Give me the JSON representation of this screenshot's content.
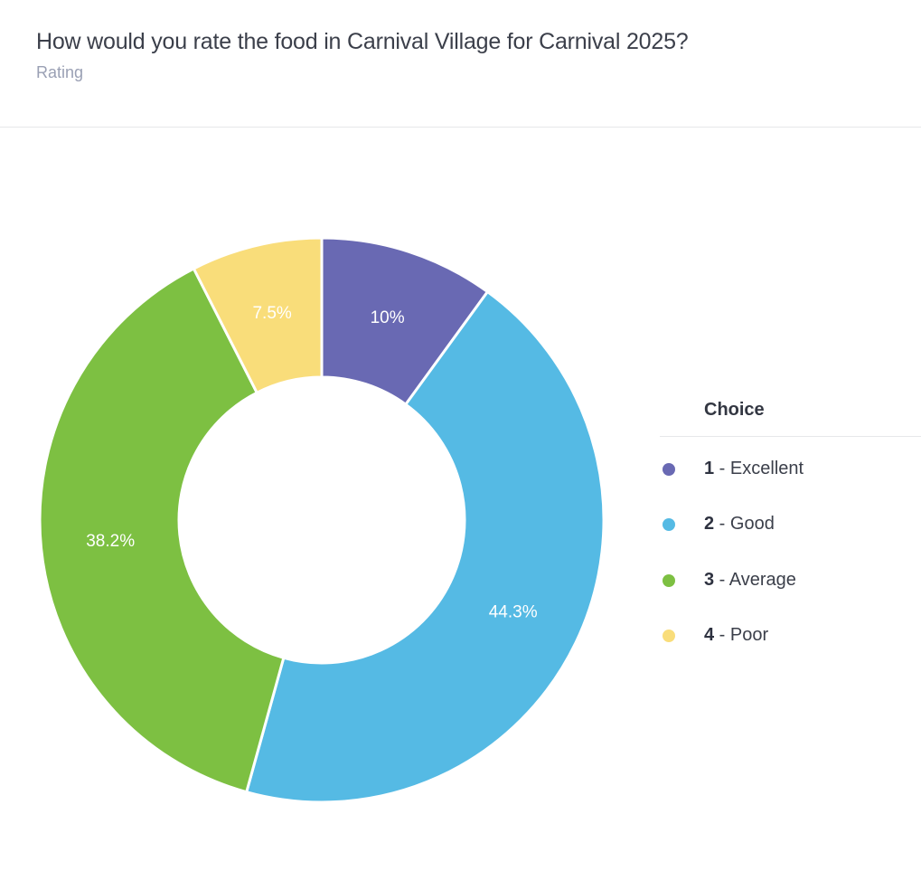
{
  "header": {
    "title": "How would you rate the food in Carnival Village for Carnival 2025?",
    "subtitle": "Rating"
  },
  "chart_data": {
    "type": "pie",
    "variant": "donut",
    "legend_title": "Choice",
    "legend_position": "right",
    "slices": [
      {
        "number": "1",
        "separator": " - ",
        "label": "Excellent",
        "value": 10,
        "display": "10%",
        "color": "#6969b3"
      },
      {
        "number": "2",
        "separator": " - ",
        "label": "Good",
        "value": 44.3,
        "display": "44.3%",
        "color": "#55bae4"
      },
      {
        "number": "3",
        "separator": " - ",
        "label": "Average",
        "value": 38.2,
        "display": "38.2%",
        "color": "#7dc042"
      },
      {
        "number": "4",
        "separator": " - ",
        "label": "Poor",
        "value": 7.5,
        "display": "7.5%",
        "color": "#f9dd7a"
      }
    ]
  }
}
